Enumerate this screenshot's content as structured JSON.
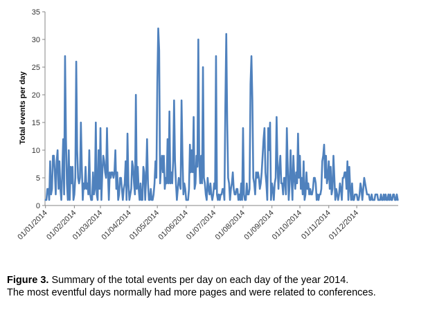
{
  "chart_data": {
    "type": "line",
    "title": "",
    "xlabel": "",
    "ylabel": "Total events per day",
    "ylim": [
      0,
      35
    ],
    "y_ticks": [
      "0",
      "5",
      "10",
      "15",
      "20",
      "25",
      "30",
      "35"
    ],
    "x_start": "2014-01-01",
    "x_tick_labels": [
      "01/01/2014",
      "01/02/2014",
      "01/03/2014",
      "01/04/2014",
      "01/05/2014",
      "01/06/2014",
      "01/07/2014",
      "01/08/2014",
      "01/09/2014",
      "01/10/2014",
      "01/11/2014",
      "01/12/2014"
    ],
    "x_tick_dates": [
      "2014-01-01",
      "2014-02-01",
      "2014-03-01",
      "2014-04-01",
      "2014-05-01",
      "2014-06-01",
      "2014-07-01",
      "2014-08-01",
      "2014-09-01",
      "2014-10-01",
      "2014-11-01",
      "2014-12-01"
    ],
    "grid": false,
    "legend": "none",
    "series": [
      {
        "color": "#4f81bd",
        "values": [
          1,
          1,
          3,
          3,
          1,
          8,
          2,
          3,
          9,
          9,
          6,
          2,
          8,
          10,
          3,
          8,
          3,
          1,
          6,
          12,
          2,
          27,
          12,
          4,
          1,
          10,
          1,
          7,
          4,
          7,
          1,
          2,
          5,
          26,
          10,
          5,
          4,
          5,
          15,
          7,
          1,
          4,
          3,
          7,
          3,
          4,
          2,
          10,
          2,
          1,
          1,
          6,
          2,
          3,
          15,
          2,
          1,
          10,
          3,
          14,
          1,
          6,
          9,
          8,
          6,
          5,
          14,
          6,
          1,
          6,
          5,
          6,
          6,
          5,
          6,
          10,
          3,
          6,
          1,
          2,
          5,
          5,
          3,
          1,
          3,
          4,
          8,
          1,
          13,
          4,
          1,
          2,
          3,
          8,
          7,
          4,
          2,
          20,
          3,
          7,
          3,
          1,
          4,
          1,
          1,
          7,
          6,
          1,
          5,
          12,
          4,
          1,
          1,
          3,
          1,
          1,
          2,
          4,
          8,
          5,
          22,
          32,
          28,
          4,
          7,
          9,
          6,
          9,
          3,
          5,
          4,
          12,
          4,
          17,
          4,
          6,
          4,
          8,
          19,
          8,
          4,
          1,
          3,
          5,
          4,
          3,
          19,
          9,
          2,
          4,
          3,
          1,
          1,
          1,
          3,
          11,
          6,
          10,
          6,
          16,
          3,
          4,
          9,
          7,
          30,
          8,
          4,
          9,
          4,
          25,
          5,
          4,
          2,
          1,
          5,
          3,
          2,
          4,
          2,
          1,
          2,
          4,
          3,
          27,
          2,
          1,
          2,
          1,
          2,
          2,
          3,
          3,
          1,
          18,
          31,
          15,
          5,
          4,
          1,
          3,
          4,
          6,
          3,
          2,
          2,
          3,
          3,
          1,
          2,
          1,
          4,
          1,
          14,
          2,
          1,
          1,
          4,
          2,
          2,
          3,
          22,
          27,
          19,
          5,
          4,
          2,
          6,
          5,
          6,
          5,
          3,
          4,
          6,
          9,
          12,
          14,
          6,
          4,
          1,
          14,
          10,
          15,
          1,
          4,
          3,
          1,
          4,
          5,
          16,
          7,
          3,
          7,
          9,
          4,
          4,
          2,
          5,
          5,
          2,
          14,
          7,
          1,
          4,
          10,
          5,
          1,
          9,
          5,
          3,
          6,
          4,
          13,
          5,
          9,
          3,
          5,
          2,
          8,
          1,
          2,
          6,
          3,
          4,
          2,
          3,
          2,
          2,
          3,
          5,
          5,
          4,
          1,
          2,
          1,
          2,
          2,
          3,
          8,
          9,
          11,
          5,
          9,
          4,
          5,
          8,
          3,
          7,
          2,
          3,
          9,
          5,
          1,
          3,
          2,
          1,
          2,
          4,
          3,
          1,
          5,
          5,
          6,
          6,
          3,
          8,
          1,
          7,
          3,
          1,
          4,
          1,
          1,
          2,
          2,
          2,
          1,
          1,
          2,
          4,
          3,
          1,
          3,
          5,
          4,
          3,
          2,
          2,
          2,
          1,
          1,
          2,
          1,
          1,
          1,
          2,
          2,
          2,
          1,
          1,
          1,
          2,
          1,
          1,
          2,
          1,
          2,
          1,
          1,
          2,
          1,
          2,
          1,
          1,
          2,
          2,
          1,
          1,
          2,
          1
        ]
      }
    ]
  },
  "caption": {
    "label": "Figure 3.",
    "line1": "Summary of the total events per day on each day of the year 2014.",
    "line2": "The most eventful days normally had more pages and were related to conferences."
  }
}
